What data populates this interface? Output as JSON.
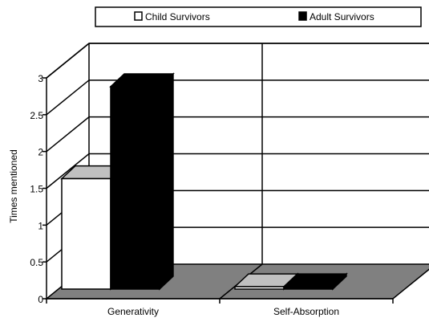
{
  "chart_data": {
    "type": "bar",
    "style": "3d-clustered",
    "categories": [
      "Generativity",
      "Self-Absorption"
    ],
    "series": [
      {
        "name": "Child Survivors",
        "values": [
          1.5,
          0
        ],
        "color": "#ffffff"
      },
      {
        "name": "Adult Survivors",
        "values": [
          2.75,
          0
        ],
        "color": "#000000"
      }
    ],
    "ylabel": "Times mentioned",
    "xlabel": "",
    "ylim": [
      0,
      3
    ],
    "yticks": [
      "0",
      "0.5",
      "1",
      "1.5",
      "2",
      "2.5",
      "3"
    ],
    "grid": true,
    "legend_position": "top",
    "floor_color": "#808080",
    "side_color": "#c0c0c0"
  }
}
